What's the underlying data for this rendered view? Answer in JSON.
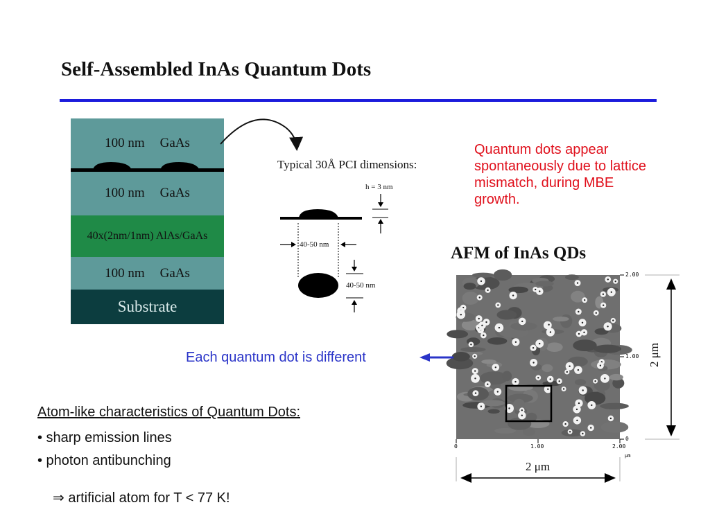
{
  "title": "Self-Assembled InAs Quantum Dots",
  "colors": {
    "rule": "#1c1cdc",
    "note_red": "#e0101c",
    "note_blue": "#2a34c8",
    "gaas_layer": "#5e9a9a",
    "superlattice_layer": "#1f8a47",
    "substrate_layer": "#0c3d3f"
  },
  "stack": {
    "layers": [
      {
        "thickness": "100 nm",
        "material": "GaAs"
      },
      {
        "thickness": "100 nm",
        "material": "GaAs"
      },
      {
        "label": "40x(2nm/1nm) AlAs/GaAs"
      },
      {
        "thickness": "100 nm",
        "material": "GaAs"
      },
      {
        "label": "Substrate"
      }
    ]
  },
  "pci": {
    "title": "Typical 30Å PCI dimensions:",
    "height_label": "h = 3 nm",
    "width_label": "40-50 nm",
    "depth_label": "40-50 nm"
  },
  "note_red": "Quantum dots appear spontaneously due to lattice mismatch, during MBE growth.",
  "afm": {
    "title": "AFM of InAs QDs",
    "x_ticks": [
      "0",
      "1.00",
      "2.00"
    ],
    "y_ticks": [
      "2.00",
      "1.00",
      "0"
    ],
    "unit": "µm",
    "scale_x": "2 μm",
    "scale_y": "2 μm"
  },
  "note_blue": "Each quantum dot is different",
  "characteristics": {
    "heading": "Atom-like characteristics of Quantum Dots:",
    "bullets": [
      "• sharp emission lines",
      "• photon antibunching"
    ],
    "conclusion": "⇒ artificial atom for T < 77 K!"
  }
}
